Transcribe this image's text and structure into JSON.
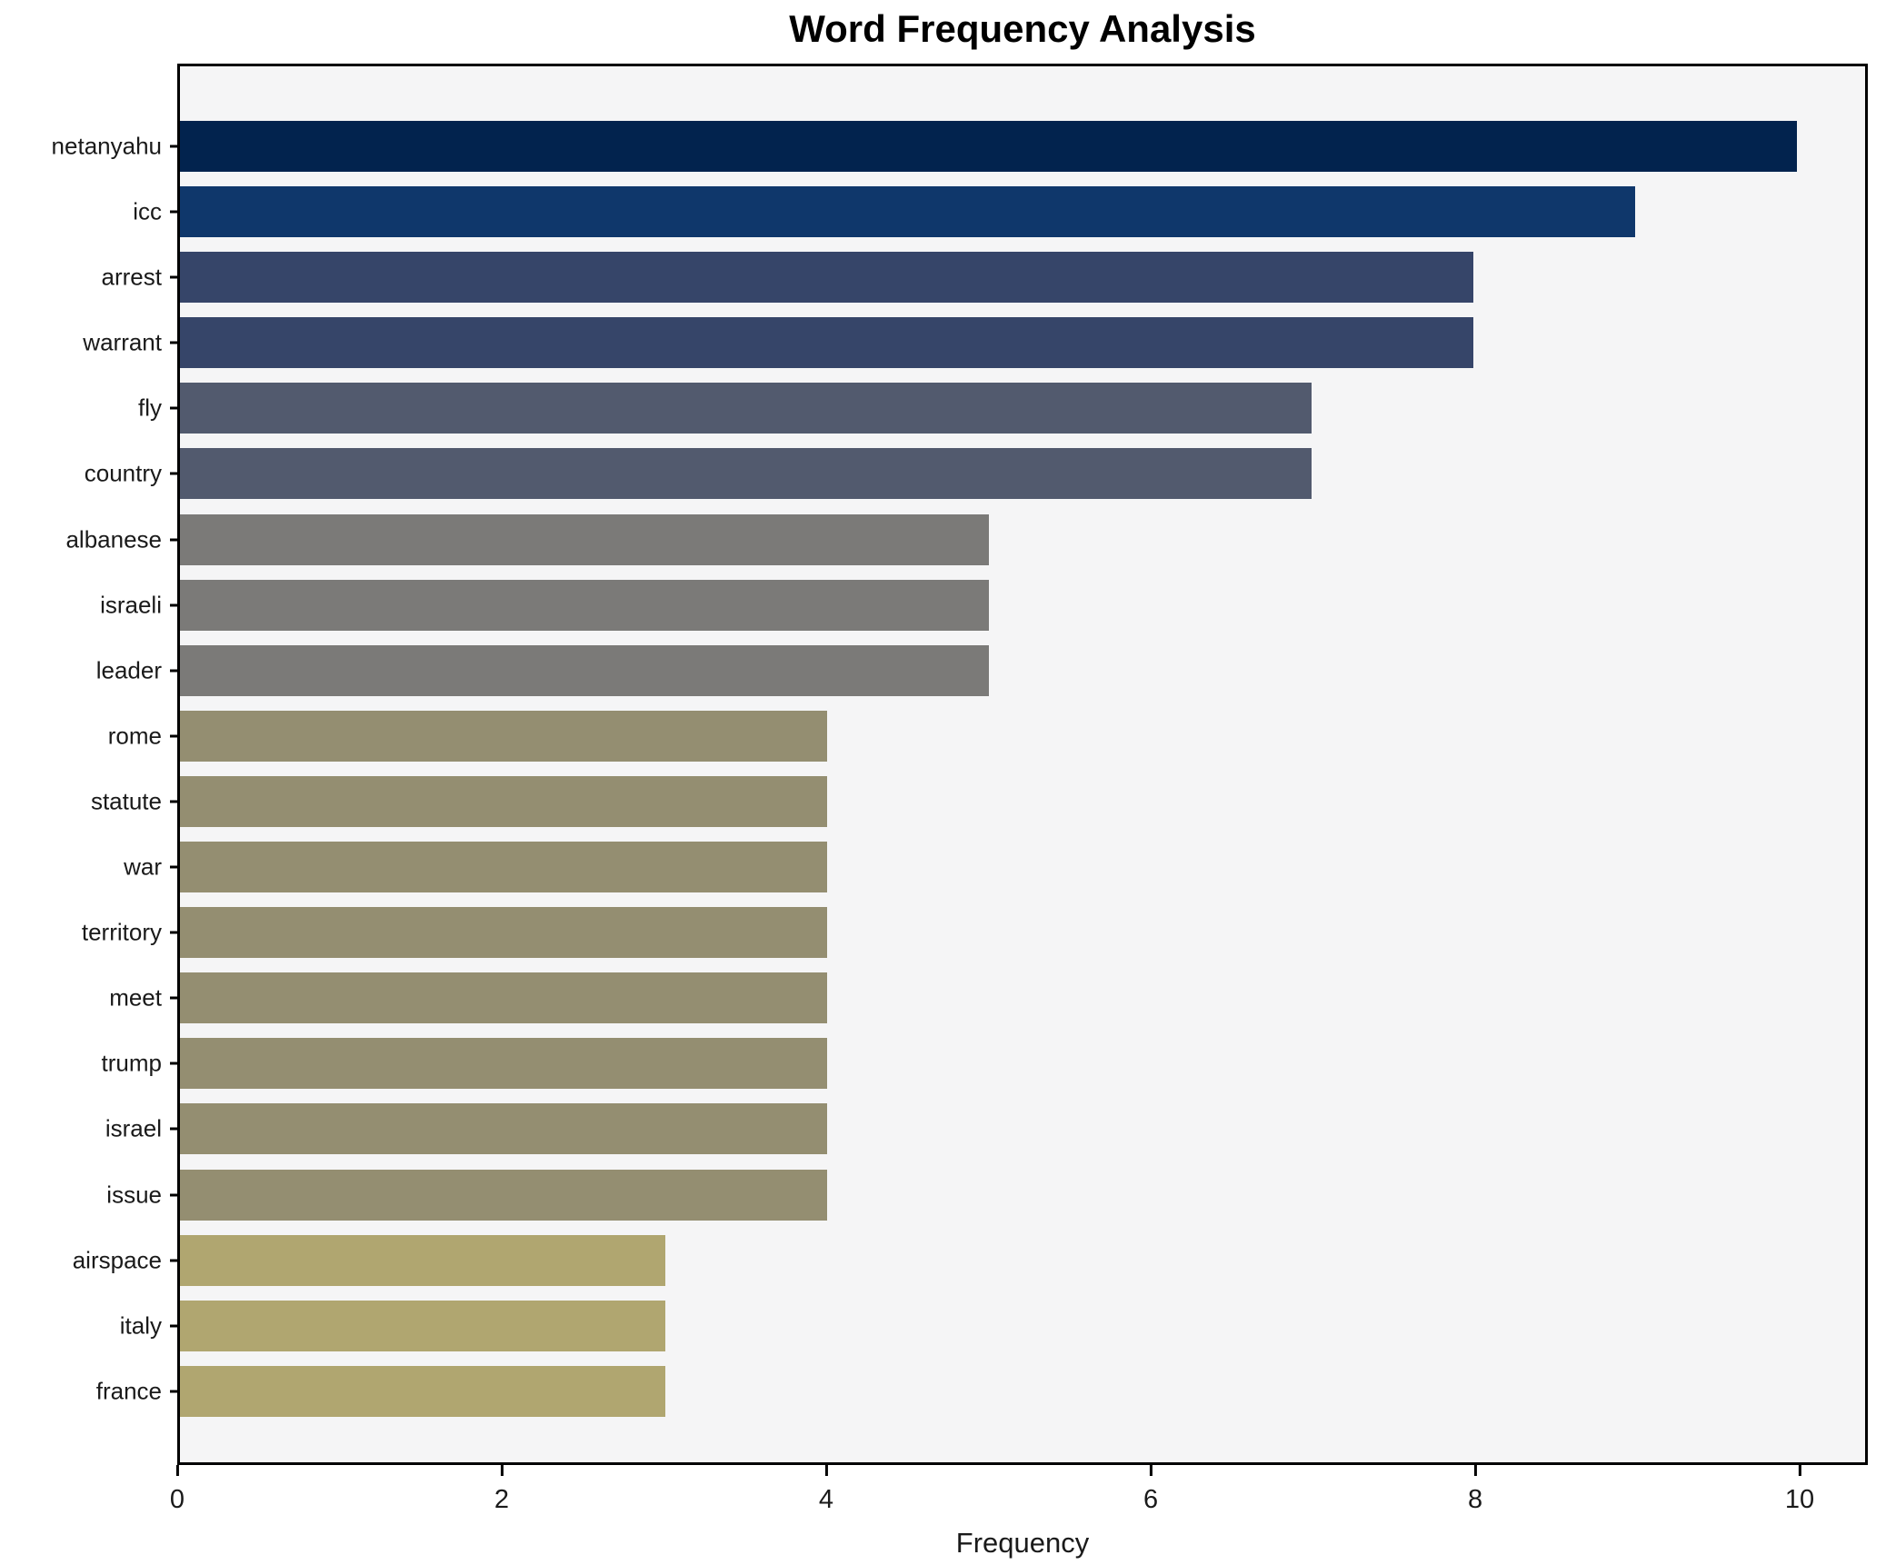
{
  "chart_data": {
    "type": "bar",
    "orientation": "horizontal",
    "title": "Word Frequency Analysis",
    "xlabel": "Frequency",
    "ylabel": "",
    "categories": [
      "netanyahu",
      "icc",
      "arrest",
      "warrant",
      "fly",
      "country",
      "albanese",
      "israeli",
      "leader",
      "rome",
      "statute",
      "war",
      "territory",
      "meet",
      "trump",
      "israel",
      "issue",
      "airspace",
      "italy",
      "france"
    ],
    "values": [
      10,
      9,
      8,
      8,
      7,
      7,
      5,
      5,
      5,
      4,
      4,
      4,
      4,
      4,
      4,
      4,
      4,
      3,
      3,
      3
    ],
    "bar_colors": [
      "#02234e",
      "#0f376b",
      "#364569",
      "#364569",
      "#525a6e",
      "#525a6e",
      "#7b7a78",
      "#7b7a78",
      "#7b7a78",
      "#948e71",
      "#948e71",
      "#948e71",
      "#948e71",
      "#948e71",
      "#948e71",
      "#948e71",
      "#948e71",
      "#b0a670",
      "#b0a670",
      "#b0a670"
    ],
    "xticks": [
      0,
      2,
      4,
      6,
      8,
      10
    ],
    "xlim": [
      0,
      10.42
    ],
    "grid": false,
    "legend_position": "none",
    "plot_background": "#f5f5f6",
    "figure_background": "#ffffff",
    "axis_color": "#000000"
  }
}
